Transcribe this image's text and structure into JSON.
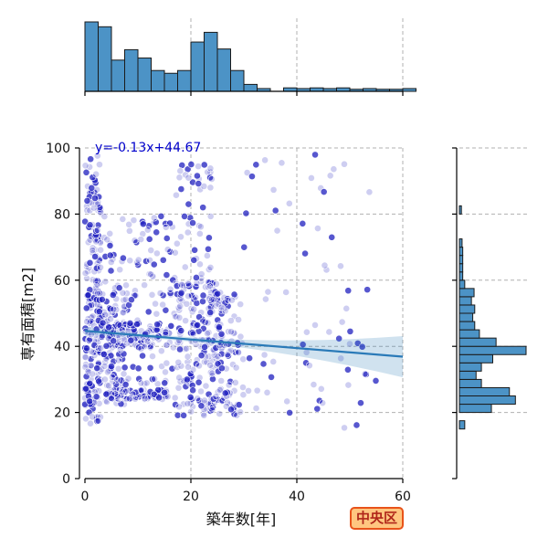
{
  "chart_data": {
    "type": "scatter",
    "xlabel": "築年数[年]",
    "ylabel": "専有面積[m2]",
    "xlim": [
      0,
      60
    ],
    "ylim": [
      0,
      100
    ],
    "xticks": [
      0,
      20,
      40,
      60
    ],
    "yticks": [
      0,
      20,
      40,
      60,
      80,
      100
    ],
    "grid": true,
    "annotation": "y=-0.13x+44.67",
    "regression": {
      "slope": -0.13,
      "intercept": 44.67
    },
    "badge": "中央区",
    "colors": {
      "points": "#1f1fbf",
      "histogram": "#4c93c6",
      "regression": "#2a7ab8",
      "badge_bg": "#ffc680",
      "badge_border": "#e8531a",
      "badge_text": "#b0271a"
    },
    "x_marginal_histogram": {
      "bin_width": 2.5,
      "bin_start": 0,
      "relative_heights": [
        1.0,
        0.93,
        0.45,
        0.6,
        0.48,
        0.3,
        0.26,
        0.3,
        0.71,
        0.85,
        0.61,
        0.3,
        0.1,
        0.04,
        0.0,
        0.05,
        0.04,
        0.05,
        0.04,
        0.05,
        0.03,
        0.04,
        0.03,
        0.03,
        0.04,
        0.0
      ]
    },
    "y_marginal_histogram": {
      "bin_width": 2.5,
      "bin_start": 15,
      "relative_heights": [
        0.08,
        0.0,
        0.48,
        0.84,
        0.75,
        0.33,
        0.25,
        0.33,
        0.5,
        1.0,
        0.55,
        0.3,
        0.23,
        0.2,
        0.23,
        0.18,
        0.22,
        0.08,
        0.05,
        0.05,
        0.05,
        0.05,
        0.04,
        0.0,
        0.0,
        0.0,
        0.03
      ]
    },
    "clusters": [
      {
        "x": [
          0,
          3
        ],
        "y": [
          16,
          98
        ],
        "n": 180
      },
      {
        "x": [
          0,
          8
        ],
        "y": [
          22,
          60
        ],
        "n": 140
      },
      {
        "x": [
          4,
          16
        ],
        "y": [
          24,
          27
        ],
        "n": 90
      },
      {
        "x": [
          4,
          16
        ],
        "y": [
          40,
          47
        ],
        "n": 90
      },
      {
        "x": [
          3,
          17
        ],
        "y": [
          28,
          80
        ],
        "n": 150
      },
      {
        "x": [
          17,
          26
        ],
        "y": [
          19,
          60
        ],
        "n": 220
      },
      {
        "x": [
          17,
          24
        ],
        "y": [
          60,
          96
        ],
        "n": 50
      },
      {
        "x": [
          25,
          30
        ],
        "y": [
          19,
          56
        ],
        "n": 70
      },
      {
        "x": [
          30,
          55
        ],
        "y": [
          12,
          100
        ],
        "n": 70
      }
    ]
  }
}
